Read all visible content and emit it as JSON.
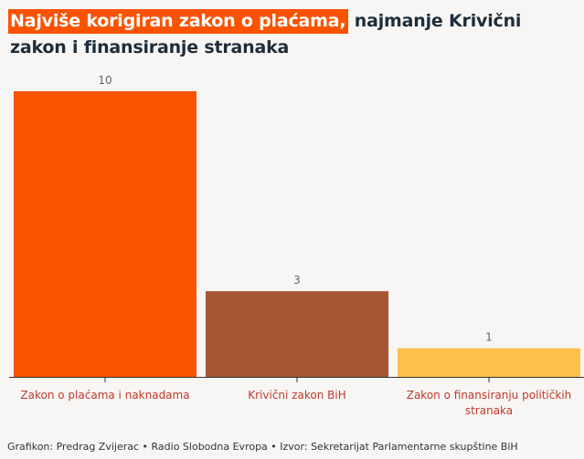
{
  "title": {
    "highlight": "Najviše korigiran zakon o plaćama,",
    "rest": " najmanje Krivični zakon i finansiranje stranaka"
  },
  "credit": "Grafikon: Predrag Zvijerac • Radio Slobodna Evropa • Izvor: Sekretarijat Parlamentarne skupštine BiH",
  "colors": {
    "accent": "#fa5300",
    "bars": [
      "#fa5300",
      "#a75633",
      "#fdc04a"
    ],
    "category_label": "#c0392b",
    "value_label": "#666666",
    "axis": "#333333"
  },
  "chart_data": {
    "type": "bar",
    "categories": [
      [
        "Zakon o plaćama i naknadama"
      ],
      [
        "Krivični zakon BiH"
      ],
      [
        "Zakon o finansiranju političkih",
        "stranaka"
      ]
    ],
    "values": [
      10,
      3,
      1
    ],
    "ylim": [
      0,
      10
    ],
    "grid": false,
    "data_labels": true
  }
}
